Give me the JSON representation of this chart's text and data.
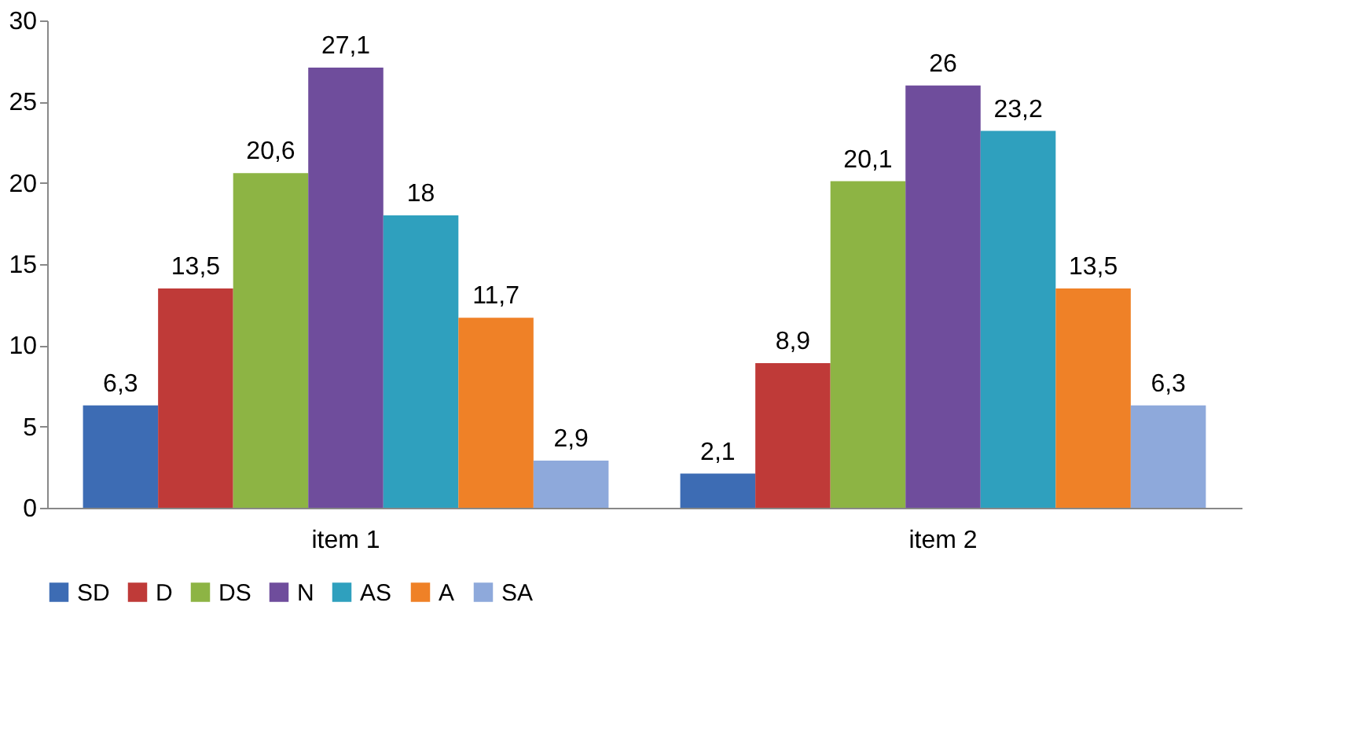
{
  "chart_data": {
    "type": "bar",
    "categories": [
      "item 1",
      "item 2"
    ],
    "series": [
      {
        "name": "SD",
        "color": "#3d6cb4",
        "values": [
          6.3,
          2.1
        ],
        "value_labels": [
          "6,3",
          "2,1"
        ]
      },
      {
        "name": "D",
        "color": "#bf3a38",
        "values": [
          13.5,
          8.9
        ],
        "value_labels": [
          "13,5",
          "8,9"
        ]
      },
      {
        "name": "DS",
        "color": "#8db444",
        "values": [
          20.6,
          20.1
        ],
        "value_labels": [
          "20,6",
          "20,1"
        ]
      },
      {
        "name": "N",
        "color": "#6f4d9c",
        "values": [
          27.1,
          26
        ],
        "value_labels": [
          "27,1",
          "26"
        ]
      },
      {
        "name": "AS",
        "color": "#2fa0be",
        "values": [
          18,
          23.2
        ],
        "value_labels": [
          "18",
          "23,2"
        ]
      },
      {
        "name": "A",
        "color": "#ef8127",
        "values": [
          11.7,
          13.5
        ],
        "value_labels": [
          "11,7",
          "13,5"
        ]
      },
      {
        "name": "SA",
        "color": "#8ea9db",
        "values": [
          2.9,
          6.3
        ],
        "value_labels": [
          "2,9",
          "6,3"
        ]
      }
    ],
    "ylim": [
      0,
      30
    ],
    "yticks": [
      0,
      5,
      10,
      15,
      20,
      25,
      30
    ],
    "grid": false,
    "legend": "bottom"
  }
}
